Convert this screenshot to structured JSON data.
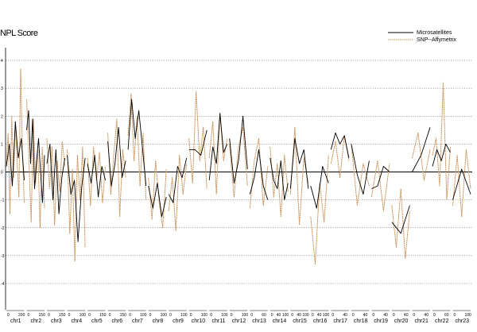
{
  "chart_data": {
    "type": "line",
    "ylabel": "NPL Score",
    "ylim": [
      -4,
      4
    ],
    "yticks": [
      -4,
      -3,
      -2,
      -1,
      0,
      1,
      2,
      3,
      4
    ],
    "grid": "dotted horizontal",
    "legend": "top-right",
    "series": [
      {
        "name": "Microsatellites",
        "color": "#000000"
      },
      {
        "name": "SNP--Affymetrix",
        "color": "#c8935a"
      }
    ],
    "chromosomes": [
      {
        "label": "chr1",
        "ticks": [
          "0",
          "200"
        ]
      },
      {
        "label": "chr2",
        "ticks": [
          "0",
          "150"
        ]
      },
      {
        "label": "chr3",
        "ticks": [
          "0",
          "150"
        ]
      },
      {
        "label": "chr4",
        "ticks": [
          "0",
          "100"
        ]
      },
      {
        "label": "chr5",
        "ticks": [
          "0",
          "150"
        ]
      },
      {
        "label": "chr6",
        "ticks": [
          "0",
          "150"
        ]
      },
      {
        "label": "chr7",
        "ticks": [
          "0",
          "100"
        ]
      },
      {
        "label": "chr8",
        "ticks": [
          "0",
          "100"
        ]
      },
      {
        "label": "chr9",
        "ticks": [
          "0",
          "100"
        ]
      },
      {
        "label": "chr10",
        "ticks": [
          "0",
          "100"
        ]
      },
      {
        "label": "chr11",
        "ticks": [
          "0",
          "100"
        ]
      },
      {
        "label": "chr12",
        "ticks": [
          "0",
          "100"
        ]
      },
      {
        "label": "chr13",
        "ticks": [
          "0",
          "60"
        ]
      },
      {
        "label": "chr14",
        "ticks": [
          "0",
          "40",
          "100"
        ]
      },
      {
        "label": "chr15",
        "ticks": [
          "0",
          "40",
          "100"
        ]
      },
      {
        "label": "chr16",
        "ticks": [
          "0",
          "40",
          "100"
        ]
      },
      {
        "label": "chr17",
        "ticks": [
          "0",
          "40"
        ]
      },
      {
        "label": "chr18",
        "ticks": [
          "0",
          "40"
        ]
      },
      {
        "label": "chr19",
        "ticks": [
          "0",
          "40"
        ]
      },
      {
        "label": "chr20",
        "ticks": [
          "0",
          "40"
        ]
      },
      {
        "label": "chr21",
        "ticks": [
          "0",
          "40"
        ]
      },
      {
        "label": "chr22",
        "ticks": [
          "0",
          "60"
        ]
      },
      {
        "label": "chr23",
        "ticks": [
          "0",
          "100"
        ]
      }
    ],
    "micro_values": [
      [
        0.2,
        1.0,
        -0.5,
        1.8,
        0.5,
        1.2,
        -0.3
      ],
      [
        1.5,
        2.2,
        0.3,
        1.9,
        -0.6,
        0.4,
        1.2,
        0.0,
        -1.1,
        0.6
      ],
      [
        0.3,
        1.0,
        -1.0,
        0.8,
        -1.5,
        -0.2,
        0.5
      ],
      [
        0.6,
        -0.8,
        -0.3,
        -2.5,
        -0.6,
        0.5
      ],
      [
        0.3,
        -0.4,
        0.6,
        -0.9,
        0.2,
        -0.3
      ],
      [
        1.1,
        -0.5,
        0.3,
        1.6,
        -0.2,
        0.4
      ],
      [
        0.8,
        2.6,
        1.2,
        2.2,
        0.9,
        -0.5
      ],
      [
        -0.5,
        -1.3,
        -0.4,
        -1.6,
        -0.9
      ],
      [
        -0.8,
        -1.1,
        0.2,
        -0.2,
        0.5
      ],
      [
        0.8,
        0.8,
        0.6,
        1.5
      ],
      [
        -0.3,
        0.9,
        0.3,
        2.1,
        0.7,
        1.0
      ],
      [
        1.2,
        -0.4,
        0.4,
        2.0,
        0.1
      ],
      [
        -0.8,
        -0.2,
        0.8,
        -0.5,
        -1.0
      ],
      [
        0.5,
        -0.3,
        -0.6,
        0.4,
        -1.0,
        -0.4
      ],
      [
        -0.6,
        1.2,
        0.3,
        0.8,
        -0.6
      ],
      [
        -0.5,
        -1.3,
        0.2,
        -0.4
      ],
      [
        0.8,
        1.4,
        1.0,
        1.3,
        0.5
      ],
      [
        1.0,
        -0.1,
        -0.8,
        0.4
      ],
      [
        -0.6,
        -0.5,
        0.2,
        0.0
      ],
      [
        -1.8,
        -2.2,
        -1.2
      ],
      [
        0.0,
        0.6,
        1.6
      ],
      [
        0.2,
        0.8,
        0.4,
        1.0,
        0.7
      ],
      [
        -1.0,
        0.1,
        -0.8
      ]
    ],
    "snp_values": [
      [
        0.3,
        1.4,
        -1.5,
        2.0,
        -0.2,
        1.8,
        0.4,
        -0.9,
        3.7,
        0.6,
        -1.1
      ],
      [
        2.6,
        0.5,
        -1.8,
        1.9,
        -0.4,
        0.8,
        -2.0,
        0.9,
        -1.3
      ],
      [
        1.2,
        -0.6,
        0.9,
        -1.9,
        0.4,
        -0.7,
        1.1,
        0.2
      ],
      [
        0.8,
        -2.2,
        0.1,
        -3.2,
        0.6,
        -1.0,
        0.9,
        -2.7
      ],
      [
        0.5,
        -1.2,
        0.9,
        -0.3,
        0.7,
        -1.1,
        0.2
      ],
      [
        1.4,
        -0.8,
        0.6,
        1.9,
        -1.6,
        0.8,
        -0.2
      ],
      [
        1.3,
        2.8,
        0.4,
        2.0,
        -0.5,
        1.4,
        -1.0
      ],
      [
        -0.2,
        -1.7,
        0.4,
        -1.1,
        -2.0,
        0.1
      ],
      [
        -1.4,
        -0.2,
        -2.1,
        0.6,
        -0.8,
        0.3
      ],
      [
        1.2,
        -0.4,
        2.9,
        0.4,
        1.6,
        -0.6
      ],
      [
        0.5,
        1.8,
        -0.8,
        2.1,
        0.4,
        1.2
      ],
      [
        1.0,
        -0.9,
        0.9,
        1.6,
        -0.5
      ],
      [
        -1.3,
        0.4,
        1.2,
        -1.2,
        0.2
      ],
      [
        0.9,
        -0.9,
        0.3,
        -1.6,
        0.6,
        -0.7
      ],
      [
        -0.8,
        1.6,
        -1.9,
        0.5,
        -0.4
      ],
      [
        -1.6,
        -3.3,
        -0.4,
        -1.8,
        0.6
      ],
      [
        0.3,
        1.1,
        -0.2,
        1.3,
        0.4
      ],
      [
        1.0,
        -1.2,
        0.3,
        -0.5
      ],
      [
        -0.9,
        0.4,
        -1.4,
        0.3
      ],
      [
        -1.2,
        -2.7,
        -0.6,
        -3.1,
        -1.4
      ],
      [
        0.5,
        1.4,
        -0.3,
        0.8
      ],
      [
        0.6,
        1.2,
        -0.5,
        3.2,
        -1.0,
        0.9
      ],
      [
        -1.2,
        0.6,
        -1.6,
        0.8,
        -0.6
      ]
    ]
  }
}
